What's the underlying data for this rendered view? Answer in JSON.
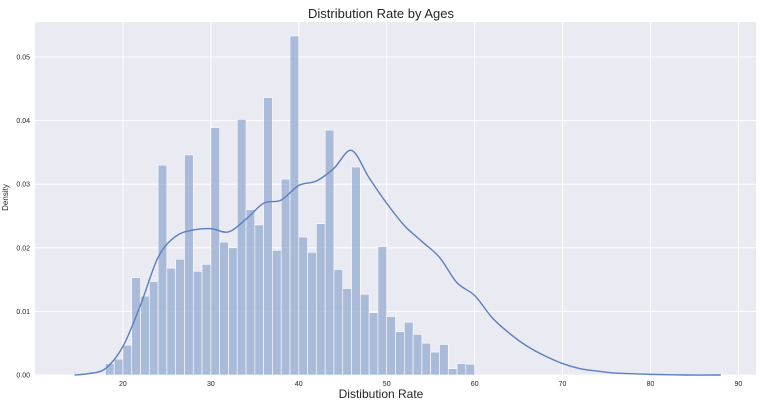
{
  "chart_data": {
    "type": "histogram",
    "title": "Distribution Rate by Ages",
    "xlabel": "Distibution Rate",
    "ylabel": "Density",
    "xlim": [
      10,
      92
    ],
    "ylim": [
      0,
      0.0555
    ],
    "x_ticks": [
      "20",
      "30",
      "40",
      "50",
      "60",
      "70",
      "80",
      "90"
    ],
    "y_ticks": [
      "0.00",
      "0.01",
      "0.02",
      "0.03",
      "0.04",
      "0.05"
    ],
    "bar_color": "#9fb3d5",
    "kde_color": "#5b7fbf",
    "background": "#eaeaf2",
    "grid": true,
    "bins": {
      "start": 18,
      "width": 1,
      "density": [
        0.0018,
        0.0025,
        0.0047,
        0.0153,
        0.0124,
        0.0147,
        0.033,
        0.0168,
        0.0182,
        0.0346,
        0.0163,
        0.0174,
        0.0389,
        0.0209,
        0.02,
        0.0402,
        0.026,
        0.0236,
        0.0436,
        0.0196,
        0.0308,
        0.0533,
        0.0217,
        0.0193,
        0.0238,
        0.0385,
        0.0166,
        0.0136,
        0.0327,
        0.0127,
        0.0098,
        0.0202,
        0.0092,
        0.0068,
        0.0083,
        0.0064,
        0.005,
        0.0036,
        0.0048,
        0.001,
        0.0018,
        0.0017
      ]
    },
    "kde": {
      "x": [
        14.5,
        16,
        18,
        20,
        22,
        24,
        26,
        28,
        30,
        32,
        34,
        36,
        38,
        40,
        42,
        44,
        46,
        48,
        50,
        52,
        54,
        56,
        58,
        60,
        62,
        64,
        66,
        68,
        70,
        72,
        74,
        76,
        78,
        80,
        84,
        88
      ],
      "y": [
        0.0,
        0.0002,
        0.001,
        0.0045,
        0.011,
        0.0185,
        0.0218,
        0.0228,
        0.023,
        0.0225,
        0.0245,
        0.027,
        0.0275,
        0.0298,
        0.0305,
        0.0325,
        0.0353,
        0.031,
        0.027,
        0.0235,
        0.021,
        0.0185,
        0.0145,
        0.0125,
        0.009,
        0.0065,
        0.0045,
        0.003,
        0.0018,
        0.001,
        0.0006,
        0.0003,
        0.0002,
        0.0001,
        0.0,
        0.0
      ]
    }
  }
}
